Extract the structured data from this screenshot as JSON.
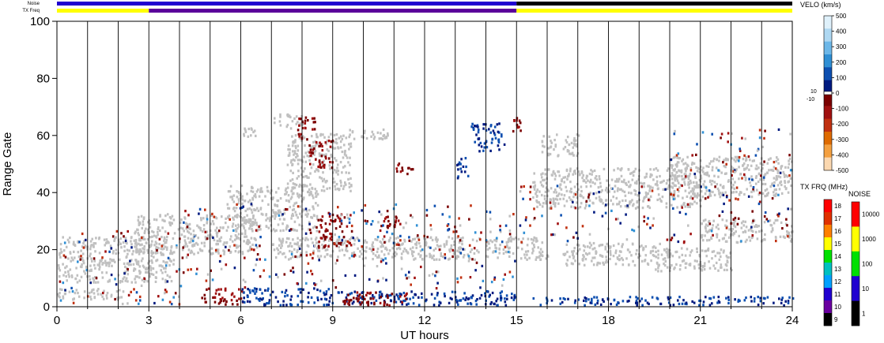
{
  "chart_data": {
    "type": "heatmap",
    "title": "",
    "xlabel": "UT hours",
    "ylabel": "Range Gate",
    "xlim": [
      0,
      24
    ],
    "ylim": [
      0,
      100
    ],
    "x_ticks": [
      "0",
      "3",
      "6",
      "9",
      "12",
      "15",
      "18",
      "21",
      "24"
    ],
    "y_ticks": [
      "0",
      "20",
      "40",
      "60",
      "80",
      "100"
    ],
    "grid": "vertical lines every hour",
    "status_strips": {
      "noise_label": "Noise",
      "txfreq_label": "TX Freq",
      "txfreq_segments": [
        {
          "from": 0,
          "to": 3,
          "color": "#ffff00"
        },
        {
          "from": 3,
          "to": 15,
          "color": "#5a009a"
        },
        {
          "from": 15,
          "to": 24,
          "color": "#ffff00"
        }
      ],
      "noise_segments": [
        {
          "from": 0,
          "to": 15,
          "color": "#2000d0"
        },
        {
          "from": 15,
          "to": 24,
          "color": "#000000"
        }
      ]
    },
    "velocity_scale": {
      "title": "VELO (km/s)",
      "ticks": [
        "500",
        "400",
        "300",
        "200",
        "100",
        "0",
        "-100",
        "-200",
        "-300",
        "-400",
        "-500"
      ],
      "side_labels": [
        "10",
        "-10"
      ],
      "positive_colors": [
        "#dff1fb",
        "#aed8f2",
        "#6cb7e8",
        "#2f8fd4",
        "#0d4fb0",
        "#001a80"
      ],
      "negative_colors": [
        "#7a0000",
        "#a01010",
        "#c03010",
        "#de6a00",
        "#f4a040",
        "#fbd8b0"
      ]
    },
    "txfreq_scale": {
      "title": "TX FRQ (MHz)",
      "ticks": [
        "18",
        "17",
        "16",
        "15",
        "14",
        "13",
        "12",
        "11",
        "10",
        "9"
      ],
      "colors": [
        "#ff0000",
        "#e03000",
        "#ff8000",
        "#ffff00",
        "#00e000",
        "#00c0c0",
        "#00a0ff",
        "#2000d0",
        "#6a00a0",
        "#000000"
      ]
    },
    "noise_scale": {
      "title": "NOISE",
      "ticks": [
        "10000",
        "1000",
        "100",
        "10",
        "1"
      ],
      "colors": [
        "#ff0000",
        "#ffff00",
        "#00e000",
        "#2000d0",
        "#000000"
      ]
    },
    "ground_scatter_color": "#c0c0c0",
    "regions": [
      {
        "kind": "ground",
        "x0": 0.0,
        "x1": 3.8,
        "y0": 8,
        "y1": 24
      },
      {
        "kind": "ground",
        "x0": 0.0,
        "x1": 2.2,
        "y0": 2,
        "y1": 6
      },
      {
        "kind": "ground",
        "x0": 2.5,
        "x1": 6.5,
        "y0": 18,
        "y1": 32
      },
      {
        "kind": "ground",
        "x0": 5.5,
        "x1": 8.5,
        "y0": 26,
        "y1": 42
      },
      {
        "kind": "ground",
        "x0": 7.5,
        "x1": 9.6,
        "y0": 40,
        "y1": 60
      },
      {
        "kind": "ground",
        "x0": 6.0,
        "x1": 6.6,
        "y0": 58,
        "y1": 62
      },
      {
        "kind": "ground",
        "x0": 7.0,
        "x1": 8.0,
        "y0": 62,
        "y1": 67
      },
      {
        "kind": "ground",
        "x0": 9.5,
        "x1": 10.8,
        "y0": 58,
        "y1": 62
      },
      {
        "kind": "ground",
        "x0": 7.0,
        "x1": 16.0,
        "y0": 16,
        "y1": 24
      },
      {
        "kind": "ground",
        "x0": 15.5,
        "x1": 21.0,
        "y0": 34,
        "y1": 48
      },
      {
        "kind": "ground",
        "x0": 15.8,
        "x1": 17.0,
        "y0": 52,
        "y1": 60
      },
      {
        "kind": "ground",
        "x0": 16.5,
        "x1": 20.0,
        "y0": 14,
        "y1": 22
      },
      {
        "kind": "ground",
        "x0": 20.0,
        "x1": 24.0,
        "y0": 38,
        "y1": 52
      },
      {
        "kind": "ground",
        "x0": 19.5,
        "x1": 22.0,
        "y0": 12,
        "y1": 20
      },
      {
        "kind": "ground",
        "x0": 21.0,
        "x1": 24.0,
        "y0": 22,
        "y1": 30
      },
      {
        "kind": "neg",
        "x0": 4.7,
        "x1": 6.1,
        "y0": 0,
        "y1": 6
      },
      {
        "kind": "pos",
        "x0": 6.0,
        "x1": 9.0,
        "y0": 0,
        "y1": 6
      },
      {
        "kind": "pos",
        "x0": 9.0,
        "x1": 15.0,
        "y0": 0,
        "y1": 5
      },
      {
        "kind": "neg",
        "x0": 9.3,
        "x1": 11.5,
        "y0": 0,
        "y1": 5
      },
      {
        "kind": "neg",
        "x0": 8.5,
        "x1": 9.6,
        "y0": 20,
        "y1": 32
      },
      {
        "kind": "neg",
        "x0": 10.5,
        "x1": 11.2,
        "y0": 26,
        "y1": 32
      },
      {
        "kind": "neg",
        "x0": 8.2,
        "x1": 9.0,
        "y0": 48,
        "y1": 58
      },
      {
        "kind": "neg",
        "x0": 7.8,
        "x1": 8.4,
        "y0": 58,
        "y1": 66
      },
      {
        "kind": "neg",
        "x0": 11.0,
        "x1": 11.6,
        "y0": 46,
        "y1": 50
      },
      {
        "kind": "pos",
        "x0": 13.0,
        "x1": 13.4,
        "y0": 44,
        "y1": 52
      },
      {
        "kind": "pos",
        "x0": 13.5,
        "x1": 14.6,
        "y0": 54,
        "y1": 64
      },
      {
        "kind": "neg",
        "x0": 14.8,
        "x1": 15.2,
        "y0": 60,
        "y1": 66
      },
      {
        "kind": "pos",
        "x0": 15.5,
        "x1": 24.0,
        "y0": 0,
        "y1": 3
      },
      {
        "kind": "mixed",
        "x0": 20.0,
        "x1": 24.0,
        "y0": 44,
        "y1": 62
      },
      {
        "kind": "mixed",
        "x0": 15.0,
        "x1": 24.0,
        "y0": 22,
        "y1": 42
      },
      {
        "kind": "mixed",
        "x0": 0.0,
        "x1": 4.0,
        "y0": 0,
        "y1": 26
      },
      {
        "kind": "mixed",
        "x0": 4.0,
        "x1": 15.0,
        "y0": 6,
        "y1": 36
      }
    ]
  }
}
